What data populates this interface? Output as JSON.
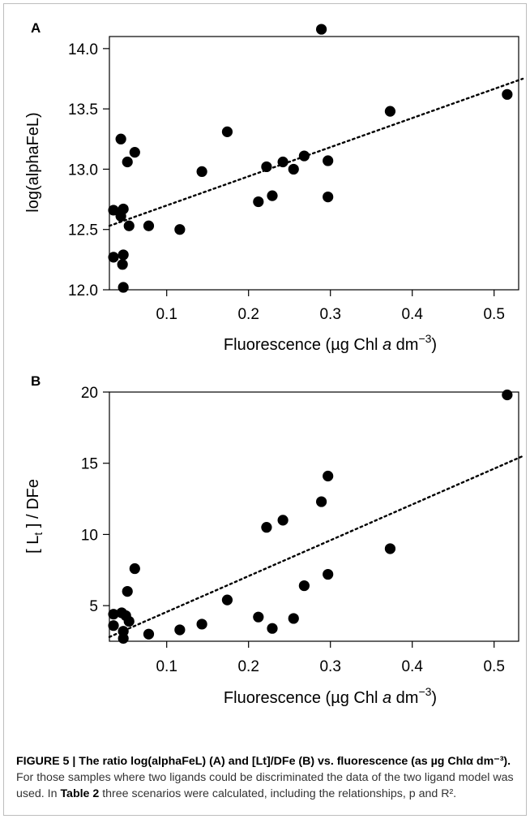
{
  "panels": [
    {
      "letter": "A",
      "chart_data": {
        "type": "scatter",
        "xlabel": "Fluorescence (µg Chl a dm⁻³)",
        "ylabel": "log(alphaFeL)",
        "xlim": [
          0.03,
          0.53
        ],
        "ylim": [
          12.0,
          14.1
        ],
        "xticks": [
          0.1,
          0.2,
          0.3,
          0.4,
          0.5
        ],
        "xtick_labels": [
          "0.1",
          "0.2",
          "0.3",
          "0.4",
          "0.5"
        ],
        "yticks": [
          12.0,
          12.5,
          13.0,
          13.5,
          14.0
        ],
        "ytick_labels": [
          "12.0",
          "12.5",
          "13.0",
          "13.5",
          "14.0"
        ],
        "points": [
          {
            "x": 0.035,
            "y": 12.66
          },
          {
            "x": 0.035,
            "y": 12.27
          },
          {
            "x": 0.044,
            "y": 13.25
          },
          {
            "x": 0.044,
            "y": 12.61
          },
          {
            "x": 0.047,
            "y": 12.67
          },
          {
            "x": 0.047,
            "y": 12.29
          },
          {
            "x": 0.046,
            "y": 12.21
          },
          {
            "x": 0.047,
            "y": 12.02
          },
          {
            "x": 0.052,
            "y": 13.06
          },
          {
            "x": 0.054,
            "y": 12.53
          },
          {
            "x": 0.061,
            "y": 13.14
          },
          {
            "x": 0.078,
            "y": 12.53
          },
          {
            "x": 0.116,
            "y": 12.5
          },
          {
            "x": 0.143,
            "y": 12.98
          },
          {
            "x": 0.174,
            "y": 13.31
          },
          {
            "x": 0.212,
            "y": 12.73
          },
          {
            "x": 0.222,
            "y": 13.02
          },
          {
            "x": 0.229,
            "y": 12.78
          },
          {
            "x": 0.242,
            "y": 13.06
          },
          {
            "x": 0.255,
            "y": 13.0
          },
          {
            "x": 0.268,
            "y": 13.11
          },
          {
            "x": 0.289,
            "y": 14.16
          },
          {
            "x": 0.297,
            "y": 13.07
          },
          {
            "x": 0.297,
            "y": 12.77
          },
          {
            "x": 0.373,
            "y": 13.48
          },
          {
            "x": 0.516,
            "y": 13.62
          }
        ],
        "trendline": {
          "style": "dotted",
          "x": [
            0.03,
            0.535
          ],
          "y": [
            12.53,
            13.75
          ]
        },
        "grid": false,
        "legend": "none"
      }
    },
    {
      "letter": "B",
      "chart_data": {
        "type": "scatter",
        "xlabel": "Fluorescence (µg Chl a dm⁻³)",
        "ylabel": "[ Lt ] / DFe",
        "xlim": [
          0.03,
          0.53
        ],
        "ylim": [
          2.5,
          20.0
        ],
        "xticks": [
          0.1,
          0.2,
          0.3,
          0.4,
          0.5
        ],
        "xtick_labels": [
          "0.1",
          "0.2",
          "0.3",
          "0.4",
          "0.5"
        ],
        "yticks": [
          5,
          10,
          15,
          20
        ],
        "ytick_labels": [
          "5",
          "10",
          "15",
          "20"
        ],
        "points": [
          {
            "x": 0.035,
            "y": 4.4
          },
          {
            "x": 0.035,
            "y": 3.6
          },
          {
            "x": 0.045,
            "y": 4.5
          },
          {
            "x": 0.047,
            "y": 2.7
          },
          {
            "x": 0.047,
            "y": 3.2
          },
          {
            "x": 0.05,
            "y": 4.3
          },
          {
            "x": 0.052,
            "y": 6.0
          },
          {
            "x": 0.054,
            "y": 3.9
          },
          {
            "x": 0.061,
            "y": 7.6
          },
          {
            "x": 0.078,
            "y": 3.0
          },
          {
            "x": 0.116,
            "y": 3.3
          },
          {
            "x": 0.143,
            "y": 3.7
          },
          {
            "x": 0.174,
            "y": 5.4
          },
          {
            "x": 0.212,
            "y": 4.2
          },
          {
            "x": 0.222,
            "y": 10.5
          },
          {
            "x": 0.229,
            "y": 3.4
          },
          {
            "x": 0.242,
            "y": 11.0
          },
          {
            "x": 0.255,
            "y": 4.1
          },
          {
            "x": 0.268,
            "y": 6.4
          },
          {
            "x": 0.289,
            "y": 12.3
          },
          {
            "x": 0.297,
            "y": 14.1
          },
          {
            "x": 0.297,
            "y": 7.2
          },
          {
            "x": 0.373,
            "y": 9.0
          },
          {
            "x": 0.516,
            "y": 19.8
          }
        ],
        "trendline": {
          "style": "dotted",
          "x": [
            0.03,
            0.535
          ],
          "y": [
            2.8,
            15.5
          ]
        },
        "grid": false,
        "legend": "none"
      }
    }
  ],
  "caption": {
    "title": "FIGURE 5 | The ratio log(alphaFeL) (A) and [Lt]/DFe (B) vs. fluorescence (as µg Chlα dm⁻³).",
    "text_before": " For those samples where two ligands could be discriminated the data of the two ligand model was used. In ",
    "table_ref": "Table 2",
    "text_after": " three scenarios were calculated, including the relationships, p and R²."
  }
}
